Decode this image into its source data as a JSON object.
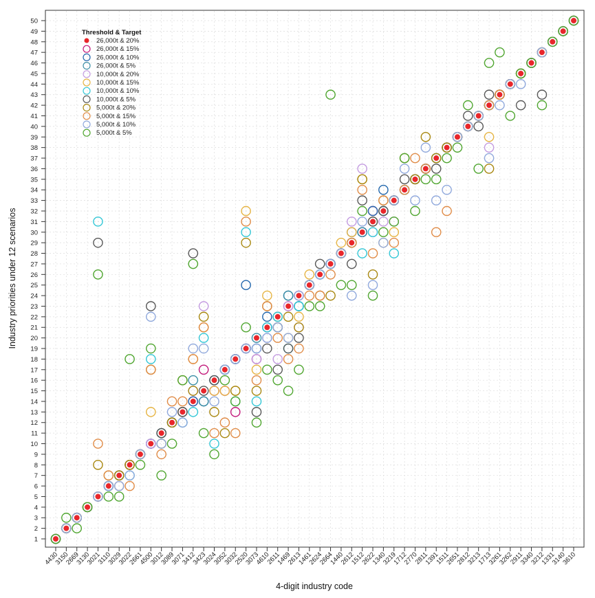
{
  "chart_data": {
    "type": "scatter",
    "title": "",
    "xlabel": "4-digit industry code",
    "ylabel": "Industry priorities under 12 scenarios",
    "ylim": [
      1,
      50
    ],
    "grid": true,
    "legend_position": "top-left",
    "legend_title": "Threshold & Target",
    "categories": [
      "4430",
      "3150",
      "2669",
      "3130",
      "3021",
      "3110",
      "3029",
      "3022",
      "2661",
      "4500",
      "3012",
      "3089",
      "3071",
      "3412",
      "3423",
      "3024",
      "3052",
      "3032",
      "2520",
      "3073",
      "4610",
      "2611",
      "1469",
      "2613",
      "1461",
      "2624",
      "2664",
      "1440",
      "2612",
      "1512",
      "2622",
      "1340",
      "3219",
      "1712",
      "2770",
      "2811",
      "1391",
      "1511",
      "2651",
      "2812",
      "3213",
      "1713",
      "3261",
      "3262",
      "2911",
      "3340",
      "3212",
      "1331",
      "3140",
      "3610"
    ],
    "yticks": [
      1,
      2,
      3,
      4,
      5,
      6,
      7,
      8,
      9,
      10,
      11,
      12,
      13,
      14,
      15,
      16,
      17,
      18,
      19,
      20,
      21,
      22,
      23,
      24,
      25,
      26,
      27,
      28,
      29,
      30,
      31,
      32,
      33,
      34,
      35,
      36,
      37,
      38,
      39,
      40,
      41,
      42,
      43,
      44,
      45,
      46,
      47,
      48,
      49,
      50
    ],
    "series": [
      {
        "name": "26,000t & 20%",
        "color": "#e8262b",
        "filled": true,
        "values": [
          1,
          2,
          3,
          4,
          5,
          6,
          7,
          8,
          9,
          10,
          11,
          12,
          13,
          14,
          15,
          16,
          17,
          18,
          19,
          20,
          21,
          22,
          23,
          24,
          25,
          26,
          27,
          28,
          29,
          30,
          31,
          32,
          33,
          34,
          35,
          36,
          37,
          38,
          39,
          40,
          41,
          42,
          43,
          44,
          45,
          46,
          47,
          48,
          49,
          50
        ]
      },
      {
        "name": "26,000t & 15%",
        "color": "#c2187a",
        "values": [
          1,
          2,
          3,
          4,
          5,
          6,
          7,
          8,
          9,
          10,
          11,
          12,
          13,
          14,
          17,
          15,
          15,
          13,
          19,
          18,
          21,
          22,
          23,
          24,
          25,
          26,
          27,
          28,
          29,
          30,
          32,
          32,
          33,
          34,
          35,
          36,
          37,
          38,
          39,
          40,
          41,
          42,
          43,
          44,
          45,
          46,
          47,
          48,
          49,
          50
        ]
      },
      {
        "name": "26,000t & 10%",
        "color": "#2166ac",
        "values": [
          1,
          2,
          3,
          4,
          5,
          6,
          7,
          8,
          9,
          10,
          11,
          12,
          13,
          14,
          14,
          16,
          17,
          18,
          25,
          19,
          22,
          21,
          24,
          23,
          25,
          26,
          27,
          28,
          30,
          30,
          32,
          34,
          33,
          34,
          35,
          36,
          37,
          38,
          39,
          40,
          41,
          42,
          43,
          44,
          45,
          46,
          47,
          48,
          49,
          50
        ]
      },
      {
        "name": "26,000t & 5%",
        "color": "#3b8ea5",
        "values": [
          1,
          2,
          3,
          4,
          5,
          6,
          7,
          8,
          9,
          10,
          11,
          12,
          13,
          16,
          14,
          16,
          17,
          18,
          19,
          20,
          21,
          22,
          24,
          23,
          25,
          26,
          27,
          28,
          29,
          30,
          31,
          32,
          33,
          34,
          35,
          36,
          37,
          38,
          39,
          40,
          41,
          42,
          43,
          44,
          45,
          46,
          47,
          48,
          49,
          50
        ]
      },
      {
        "name": "10,000t & 20%",
        "color": "#c39be0",
        "values": [
          1,
          2,
          3,
          4,
          5,
          6,
          7,
          8,
          9,
          10,
          11,
          12,
          13,
          15,
          23,
          15,
          17,
          18,
          19,
          18,
          20,
          18,
          23,
          21,
          25,
          26,
          27,
          28,
          31,
          36,
          30,
          31,
          31,
          34,
          35,
          36,
          37,
          38,
          39,
          40,
          41,
          38,
          43,
          44,
          45,
          46,
          47,
          48,
          49,
          50
        ]
      },
      {
        "name": "10,000t & 15%",
        "color": "#e6b443",
        "values": [
          1,
          2,
          3,
          4,
          5,
          6,
          7,
          8,
          9,
          13,
          11,
          12,
          13,
          18,
          21,
          15,
          15,
          15,
          32,
          17,
          24,
          22,
          20,
          22,
          26,
          26,
          27,
          29,
          30,
          35,
          31,
          29,
          30,
          34,
          35,
          36,
          37,
          38,
          39,
          40,
          41,
          39,
          43,
          44,
          45,
          46,
          47,
          48,
          49,
          50
        ]
      },
      {
        "name": "10,000t & 10%",
        "color": "#33c7d6",
        "values": [
          1,
          2,
          3,
          4,
          31,
          6,
          7,
          7,
          9,
          18,
          11,
          12,
          12,
          13,
          20,
          10,
          17,
          14,
          30,
          14,
          21,
          22,
          19,
          23,
          25,
          26,
          27,
          28,
          29,
          28,
          30,
          32,
          28,
          34,
          35,
          36,
          37,
          38,
          39,
          40,
          41,
          42,
          43,
          44,
          45,
          46,
          47,
          48,
          49,
          50
        ]
      },
      {
        "name": "10,000t & 5%",
        "color": "#575757",
        "values": [
          1,
          2,
          3,
          4,
          29,
          6,
          7,
          8,
          9,
          23,
          11,
          12,
          13,
          28,
          15,
          16,
          17,
          18,
          19,
          13,
          19,
          17,
          19,
          20,
          25,
          27,
          27,
          28,
          27,
          33,
          31,
          32,
          33,
          35,
          35,
          36,
          36,
          38,
          39,
          41,
          40,
          43,
          43,
          44,
          42,
          46,
          43,
          48,
          49,
          50
        ]
      },
      {
        "name": "5,000t & 20%",
        "color": "#a8870f",
        "values": [
          1,
          2,
          3,
          4,
          8,
          7,
          7,
          8,
          9,
          17,
          10,
          12,
          16,
          15,
          22,
          13,
          11,
          15,
          29,
          15,
          23,
          21,
          22,
          21,
          25,
          24,
          24,
          28,
          29,
          35,
          26,
          33,
          33,
          37,
          35,
          39,
          37,
          38,
          39,
          40,
          41,
          36,
          43,
          44,
          45,
          46,
          47,
          48,
          49,
          50
        ]
      },
      {
        "name": "5,000t & 15%",
        "color": "#e08b46",
        "values": [
          1,
          2,
          3,
          4,
          10,
          7,
          6,
          6,
          9,
          17,
          9,
          14,
          14,
          18,
          21,
          11,
          12,
          11,
          31,
          16,
          23,
          20,
          18,
          19,
          24,
          24,
          26,
          28,
          29,
          34,
          28,
          33,
          29,
          34,
          37,
          36,
          30,
          32,
          39,
          40,
          41,
          42,
          43,
          44,
          45,
          46,
          47,
          48,
          49,
          50
        ]
      },
      {
        "name": "5,000t & 10%",
        "color": "#8fa8dc",
        "values": [
          1,
          2,
          3,
          4,
          5,
          6,
          6,
          7,
          9,
          22,
          10,
          13,
          12,
          19,
          19,
          14,
          17,
          18,
          19,
          19,
          20,
          21,
          20,
          24,
          25,
          26,
          27,
          28,
          24,
          31,
          25,
          29,
          33,
          36,
          33,
          38,
          33,
          34,
          39,
          40,
          41,
          37,
          42,
          44,
          44,
          46,
          47,
          48,
          49,
          50
        ]
      },
      {
        "name": "5,000t & 5%",
        "color": "#4ea52e",
        "values": [
          1,
          3,
          2,
          4,
          26,
          5,
          5,
          18,
          8,
          19,
          7,
          10,
          16,
          27,
          11,
          9,
          16,
          14,
          21,
          12,
          17,
          16,
          15,
          17,
          23,
          23,
          43,
          25,
          25,
          32,
          24,
          30,
          31,
          37,
          32,
          35,
          35,
          37,
          38,
          42,
          36,
          46,
          47,
          41,
          45,
          46,
          42,
          48,
          49,
          50
        ]
      }
    ]
  }
}
